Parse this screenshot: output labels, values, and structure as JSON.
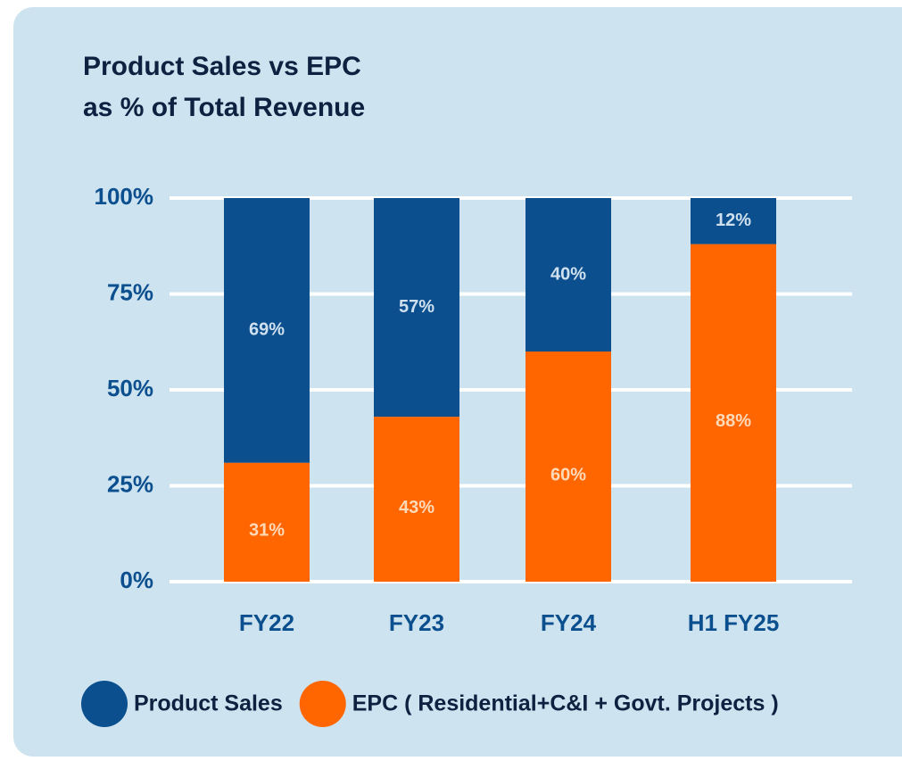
{
  "chart_data": {
    "type": "stacked_bar",
    "title": [
      "Product Sales vs EPC",
      "as % of Total Revenue"
    ],
    "categories": [
      "FY22",
      "FY23",
      "FY24",
      "H1 FY25"
    ],
    "series": [
      {
        "name": "EPC ( Residential+C&I + Govt. Projects )",
        "color": "#ff6600",
        "values": [
          31,
          43,
          60,
          88
        ],
        "value_labels": [
          "31%",
          "43%",
          "60%",
          "88%"
        ]
      },
      {
        "name": "Product Sales",
        "color": "#0b4f8e",
        "values": [
          69,
          57,
          40,
          12
        ],
        "value_labels": [
          "69%",
          "57%",
          "40%",
          "12%"
        ]
      }
    ],
    "legend_order": [
      1,
      0
    ],
    "ylim": [
      0,
      100
    ],
    "yticks": [
      {
        "value": 0,
        "label": "0%"
      },
      {
        "value": 25,
        "label": "25%"
      },
      {
        "value": 50,
        "label": "50%"
      },
      {
        "value": 75,
        "label": "75%"
      },
      {
        "value": 100,
        "label": "100%"
      }
    ],
    "grid": true
  }
}
